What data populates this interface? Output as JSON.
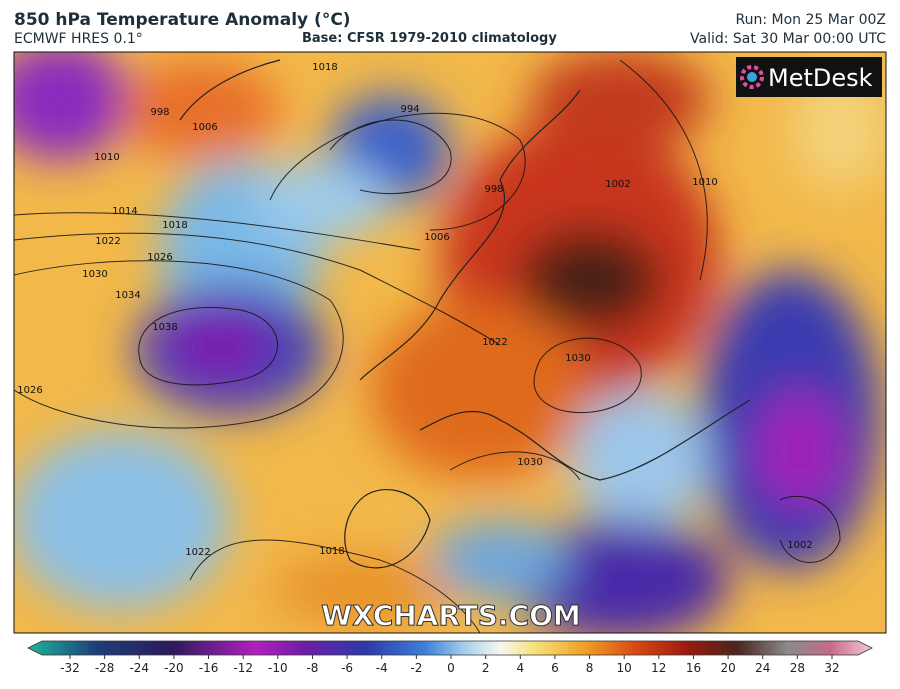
{
  "header": {
    "title": "850 hPa Temperature Anomaly (°C)",
    "model": "ECMWF HRES 0.1°",
    "base": "Base: CFSR 1979-2010 climatology",
    "run": "Run: Mon 25 Mar 00Z",
    "valid": "Valid: Sat 30 Mar 00:00 UTC"
  },
  "map": {
    "logo": "MetDesk",
    "watermark": "WXCHARTS.COM",
    "isobar_labels": [
      1014,
      1018,
      1022,
      1026,
      1030,
      1034,
      1038,
      1026,
      998,
      1006,
      1010,
      1018,
      994,
      1006,
      998,
      1022,
      1010,
      1030,
      1030,
      1002,
      1022,
      1018,
      1002
    ]
  },
  "colorbar": {
    "ticks": [
      -32,
      -28,
      -24,
      -20,
      -16,
      -12,
      -10,
      -8,
      -6,
      -4,
      -2,
      0,
      2,
      4,
      6,
      8,
      10,
      12,
      16,
      20,
      24,
      28,
      32
    ]
  }
}
